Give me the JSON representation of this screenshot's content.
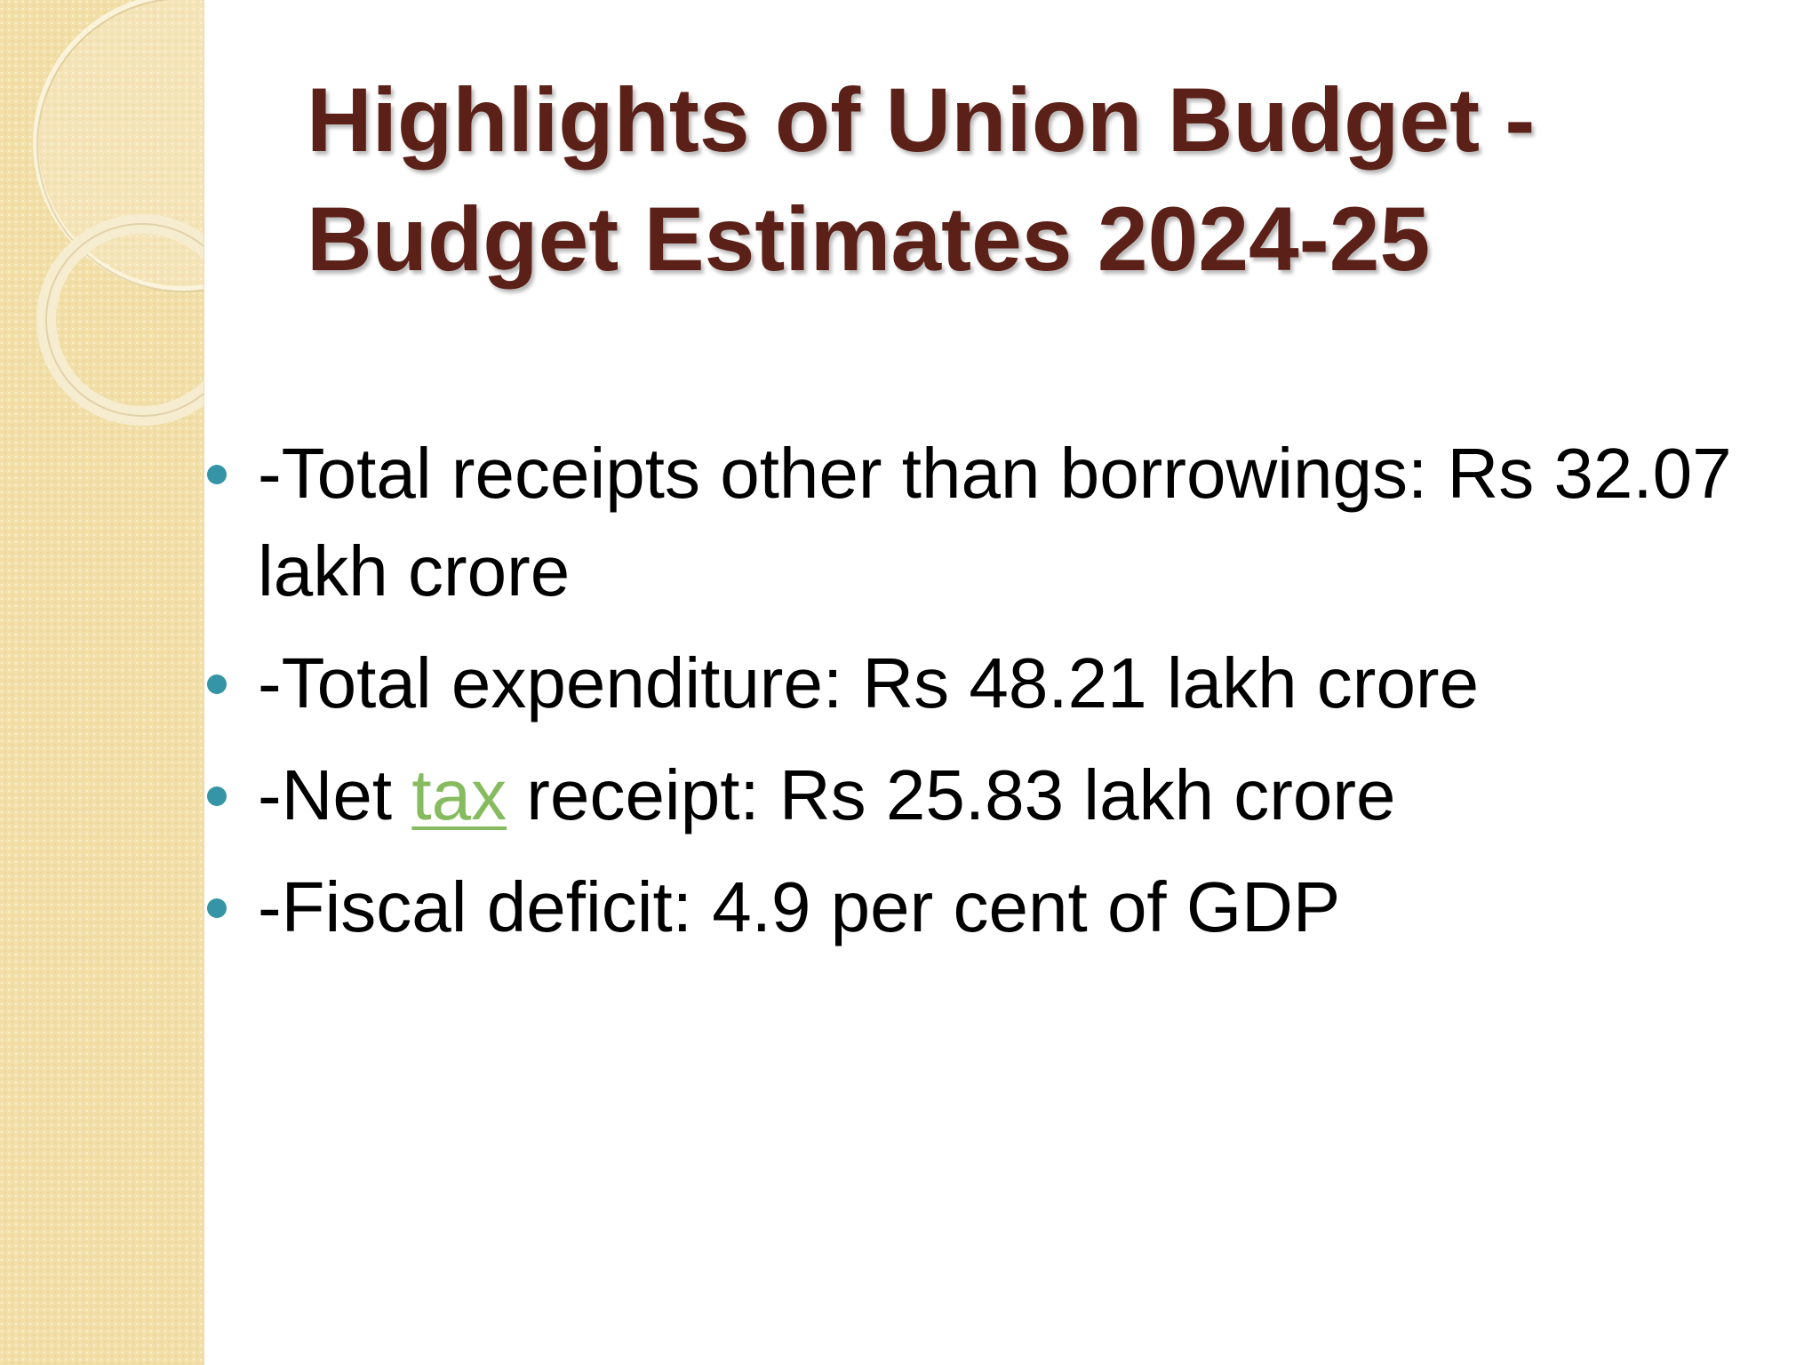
{
  "slide": {
    "title_line_1": "Highlights of Union Budget -",
    "title_line_2": "Budget Estimates 2024-25",
    "bullets": [
      "-Total receipts other than borrowings: Rs 32.07 lakh crore",
      "-Total expenditure: Rs 48.21 lakh crore",
      {
        "before": "-Net ",
        "link": "tax",
        "after": " receipt: Rs 25.83 lakh crore"
      },
      "-Fiscal deficit: 4.9 per cent of GDP"
    ]
  },
  "colors": {
    "title": "#5b2118",
    "bullet": "#3595a7",
    "link": "#86bc5f",
    "side_band": "#f2dfa8"
  }
}
